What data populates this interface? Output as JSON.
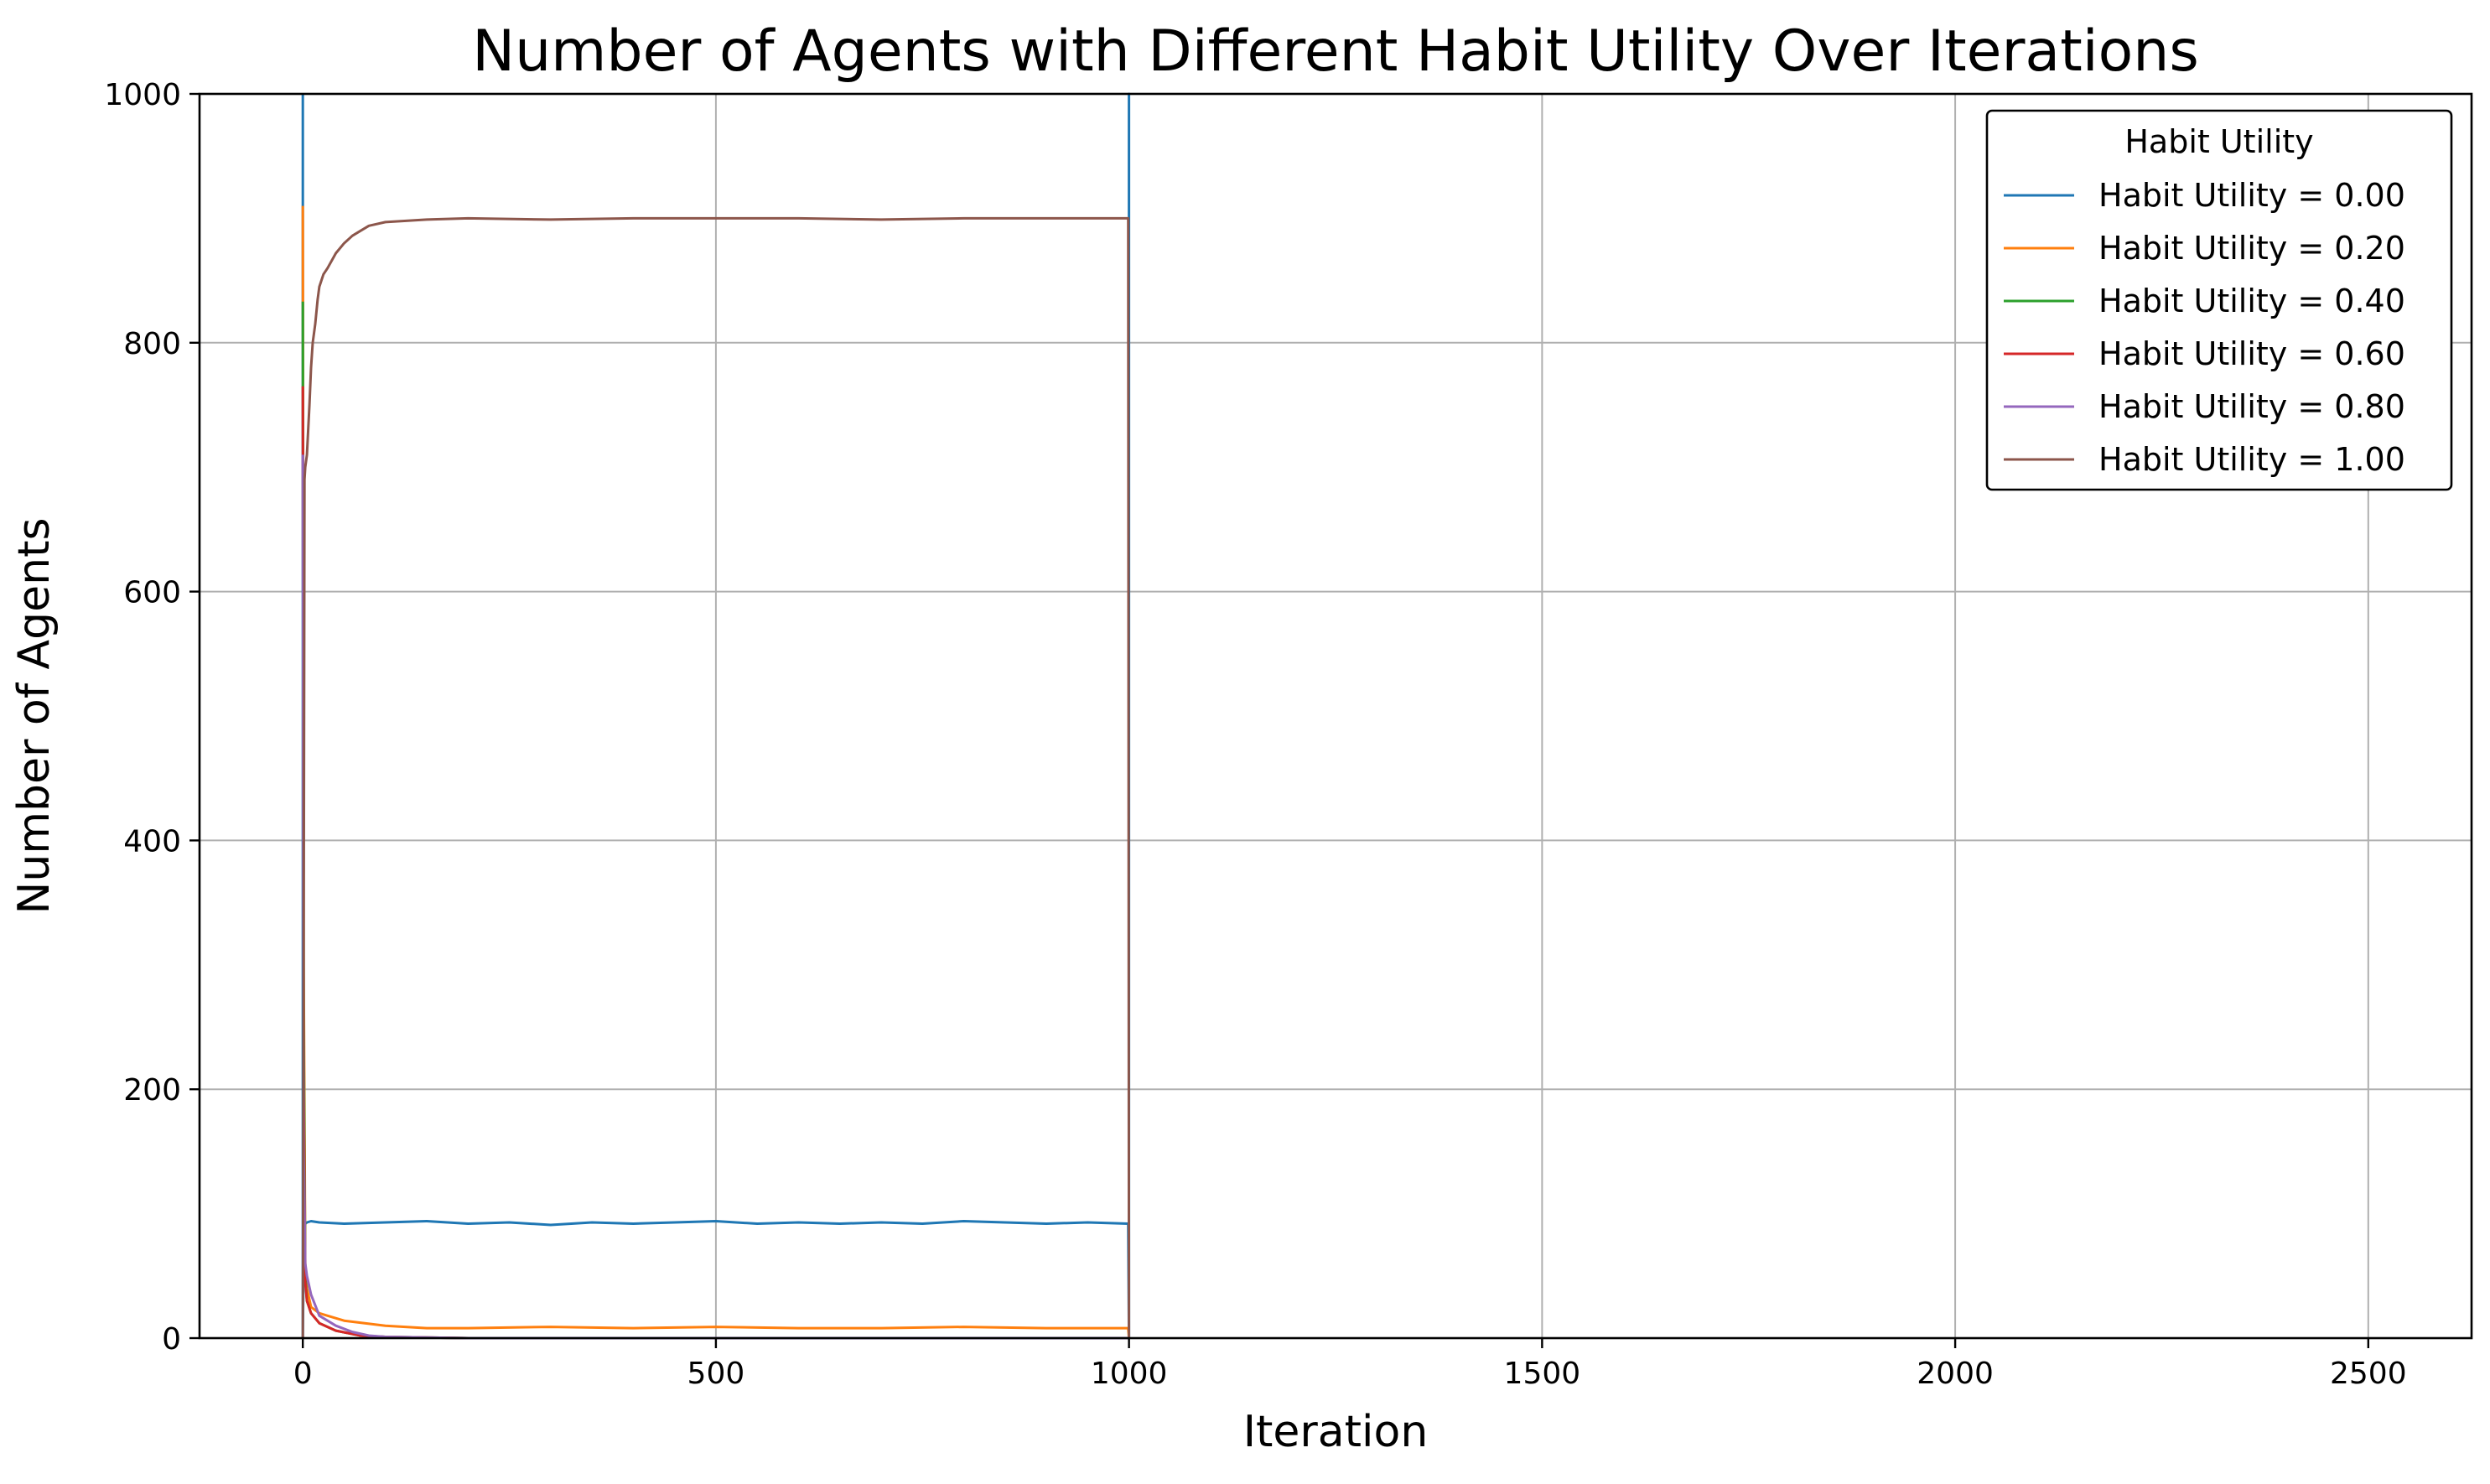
{
  "chart_data": {
    "type": "line",
    "title": "Number of Agents with Different Habit Utility Over Iterations",
    "xlabel": "Iteration",
    "ylabel": "Number of Agents",
    "xlim": [
      -125,
      2625
    ],
    "ylim": [
      0,
      1000
    ],
    "xticks": [
      0,
      500,
      1000,
      1500,
      2000,
      2500
    ],
    "yticks": [
      0,
      200,
      400,
      600,
      800,
      1000
    ],
    "grid": true,
    "legend": {
      "title": "Habit Utility",
      "placement": "top-right"
    },
    "series": [
      {
        "name": "Habit Utility = 0.00",
        "color": "#1f77b4",
        "x": [
          0,
          0,
          1,
          3,
          5,
          10,
          20,
          50,
          100,
          150,
          200,
          250,
          300,
          350,
          400,
          450,
          500,
          550,
          600,
          650,
          700,
          750,
          800,
          850,
          900,
          950,
          999,
          1000,
          1000,
          1000
        ],
        "y": [
          1000,
          0,
          70,
          92,
          93,
          94,
          93,
          92,
          93,
          94,
          92,
          93,
          91,
          93,
          92,
          93,
          94,
          92,
          93,
          92,
          93,
          92,
          94,
          93,
          92,
          93,
          92,
          0,
          1000,
          0
        ]
      },
      {
        "name": "Habit Utility = 0.20",
        "color": "#ff7f0e",
        "x": [
          0,
          1,
          3,
          5,
          10,
          20,
          30,
          50,
          75,
          100,
          150,
          200,
          300,
          400,
          500,
          600,
          700,
          800,
          900,
          999,
          1000
        ],
        "y": [
          910,
          300,
          60,
          40,
          25,
          20,
          18,
          14,
          12,
          10,
          8,
          8,
          9,
          8,
          9,
          8,
          8,
          9,
          8,
          8,
          0
        ]
      },
      {
        "name": "Habit Utility = 0.40",
        "color": "#2ca02c",
        "x": [
          0,
          1,
          3,
          5,
          10,
          20,
          40,
          70,
          100,
          200,
          500,
          999,
          1000
        ],
        "y": [
          833,
          250,
          50,
          30,
          20,
          12,
          6,
          2,
          1,
          0,
          0,
          0,
          0
        ]
      },
      {
        "name": "Habit Utility = 0.60",
        "color": "#d62728",
        "x": [
          0,
          1,
          3,
          5,
          10,
          20,
          40,
          70,
          100,
          200,
          500,
          999,
          1000
        ],
        "y": [
          765,
          200,
          45,
          30,
          20,
          12,
          6,
          2,
          1,
          0,
          0,
          0,
          0
        ]
      },
      {
        "name": "Habit Utility = 0.80",
        "color": "#9467bd",
        "x": [
          0,
          1,
          3,
          5,
          10,
          20,
          40,
          60,
          80,
          100,
          200,
          500,
          999,
          1000
        ],
        "y": [
          710,
          150,
          60,
          50,
          35,
          18,
          10,
          5,
          2,
          1,
          0,
          0,
          0,
          0
        ]
      },
      {
        "name": "Habit Utility = 1.00",
        "color": "#8c564b",
        "x": [
          0,
          1,
          2,
          3,
          5,
          8,
          10,
          12,
          15,
          18,
          20,
          25,
          30,
          40,
          50,
          60,
          70,
          80,
          100,
          125,
          150,
          200,
          300,
          400,
          500,
          600,
          700,
          800,
          900,
          999,
          1000
        ],
        "y": [
          0,
          300,
          690,
          700,
          710,
          750,
          780,
          800,
          815,
          835,
          845,
          855,
          860,
          872,
          880,
          886,
          890,
          894,
          897,
          898,
          899,
          900,
          899,
          900,
          900,
          900,
          899,
          900,
          900,
          900,
          0
        ]
      }
    ]
  }
}
